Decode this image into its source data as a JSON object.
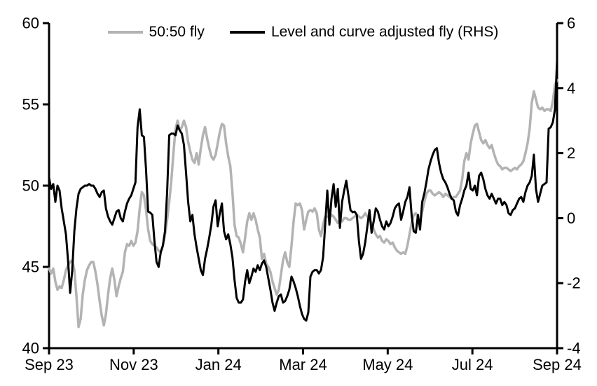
{
  "chart_data": {
    "type": "line",
    "title": "",
    "background": "#ffffff",
    "axis_color": "#000000",
    "grid": false,
    "legend_position": "top-center",
    "x_axis": {
      "tick_labels": [
        "Sep 23",
        "Nov 23",
        "Jan 24",
        "Mar 24",
        "May 24",
        "Jul 24",
        "Sep 24"
      ]
    },
    "left_axis": {
      "range": [
        40,
        60
      ],
      "ticks": [
        60,
        55,
        50,
        45,
        40
      ]
    },
    "right_axis": {
      "range": [
        -4,
        6
      ],
      "ticks": [
        6,
        4,
        2,
        0,
        -2,
        -4
      ]
    },
    "series": [
      {
        "name": "50:50 fly",
        "axis": "left",
        "color": "#b3b3b3",
        "line_width": 3.5,
        "values": [
          44.9,
          44.6,
          44.9,
          44.1,
          43.6,
          43.8,
          43.7,
          44.2,
          44.8,
          45.1,
          45.3,
          45.4,
          44.8,
          43.2,
          41.3,
          41.8,
          43.3,
          44.2,
          44.8,
          45.1,
          45.3,
          45.3,
          44.7,
          43.9,
          42.9,
          42.0,
          41.4,
          42.1,
          43.3,
          44.3,
          44.9,
          44.2,
          43.2,
          43.8,
          44.3,
          44.7,
          45.9,
          46.4,
          46.3,
          46.6,
          46.3,
          46.5,
          47.2,
          48.6,
          49.6,
          49.4,
          48.5,
          47.3,
          46.6,
          46.4,
          46.3,
          46.2,
          46.0,
          45.9,
          46.3,
          47.0,
          47.9,
          49.0,
          50.3,
          52.0,
          53.5,
          54.0,
          53.4,
          53.6,
          54.0,
          53.6,
          52.7,
          52.1,
          51.6,
          51.4,
          52.0,
          51.3,
          52.3,
          53.1,
          53.6,
          52.9,
          52.3,
          51.8,
          51.6,
          51.9,
          52.6,
          53.3,
          53.8,
          53.7,
          52.6,
          51.8,
          51.2,
          49.6,
          47.6,
          46.9,
          46.8,
          46.4,
          45.9,
          46.8,
          47.8,
          48.3,
          47.9,
          48.3,
          47.9,
          47.3,
          46.8,
          45.5,
          45.8,
          45.2,
          45.0,
          44.7,
          44.1,
          43.7,
          43.3,
          43.6,
          44.5,
          45.4,
          45.9,
          45.3,
          45.0,
          46.3,
          47.8,
          48.9,
          48.8,
          48.9,
          48.5,
          47.3,
          47.9,
          48.4,
          48.5,
          48.4,
          48.6,
          48.3,
          47.3,
          46.9,
          47.6,
          48.1,
          48.1,
          48.0,
          48.2,
          48.1,
          47.9,
          47.7,
          47.9,
          47.8,
          48.0,
          48.0,
          47.9,
          47.9,
          48.0,
          48.1,
          48.2,
          48.1,
          48.0,
          48.1,
          48.3,
          48.1,
          47.9,
          47.7,
          47.3,
          47.0,
          46.8,
          46.9,
          46.6,
          46.5,
          46.7,
          46.6,
          46.4,
          46.5,
          46.2,
          46.0,
          45.9,
          45.8,
          45.9,
          45.8,
          46.3,
          47.0,
          47.7,
          48.2,
          48.3,
          48.0,
          47.7,
          48.4,
          49.0,
          49.5,
          49.7,
          49.7,
          49.5,
          49.4,
          49.5,
          49.6,
          49.5,
          49.3,
          49.5,
          49.4,
          49.3,
          49.2,
          49.3,
          49.3,
          49.5,
          49.7,
          50.4,
          51.5,
          52.0,
          51.6,
          52.6,
          53.2,
          53.7,
          53.8,
          53.3,
          52.8,
          52.6,
          52.8,
          52.5,
          52.3,
          52.5,
          52.0,
          51.6,
          51.3,
          51.2,
          51.0,
          51.1,
          51.1,
          51.0,
          50.9,
          51.0,
          51.1,
          51.0,
          51.2,
          51.3,
          51.5,
          52.0,
          52.6,
          53.5,
          55.1,
          55.8,
          55.3,
          54.8,
          54.7,
          54.8,
          54.6,
          54.7,
          54.7,
          54.6,
          55.2,
          56.2,
          56.5
        ]
      },
      {
        "name": "Level and curve adjusted fly (RHS)",
        "axis": "right",
        "color": "#000000",
        "line_width": 3,
        "values": [
          1.25,
          0.9,
          1.05,
          0.5,
          1.0,
          0.85,
          0.3,
          -0.1,
          -0.5,
          -1.3,
          -2.3,
          -1.6,
          -0.4,
          0.3,
          0.75,
          0.9,
          0.95,
          1.0,
          1.0,
          1.05,
          1.0,
          1.0,
          0.9,
          0.75,
          0.65,
          0.8,
          0.85,
          0.3,
          0.05,
          -0.1,
          -0.2,
          0.0,
          0.2,
          0.25,
          0.0,
          -0.1,
          0.2,
          0.45,
          0.6,
          0.7,
          0.9,
          1.1,
          2.8,
          3.35,
          2.55,
          2.5,
          1.5,
          0.2,
          0.17,
          0.1,
          -0.7,
          -1.35,
          -1.5,
          -1.05,
          -0.85,
          -0.4,
          0.8,
          2.55,
          2.6,
          2.6,
          2.55,
          2.85,
          2.7,
          2.6,
          2.25,
          1.4,
          0.5,
          -0.1,
          0.1,
          -0.5,
          -0.9,
          -1.25,
          -1.6,
          -1.75,
          -1.25,
          -0.95,
          -0.6,
          -0.2,
          0.35,
          0.55,
          -0.25,
          0.15,
          0.45,
          -0.4,
          -0.65,
          -0.5,
          -0.8,
          -1.2,
          -1.9,
          -2.45,
          -2.6,
          -2.6,
          -2.5,
          -1.95,
          -1.6,
          -2.0,
          -1.8,
          -1.55,
          -1.65,
          -1.45,
          -1.6,
          -1.4,
          -1.3,
          -1.5,
          -1.85,
          -2.2,
          -2.6,
          -2.85,
          -2.6,
          -2.4,
          -2.35,
          -2.6,
          -2.55,
          -2.4,
          -2.2,
          -1.8,
          -1.95,
          -2.15,
          -2.4,
          -2.7,
          -2.95,
          -3.1,
          -3.15,
          -2.9,
          -1.8,
          -1.65,
          -1.6,
          -1.6,
          -1.7,
          -1.6,
          -1.2,
          -0.2,
          0.85,
          -0.2,
          0.6,
          1.05,
          0.35,
          0.9,
          -0.3,
          0.5,
          0.85,
          1.15,
          0.7,
          0.25,
          0.18,
          0.2,
          0.1,
          -0.7,
          -1.25,
          -1.1,
          -0.75,
          -0.25,
          0.25,
          -0.45,
          -0.1,
          0.3,
          0.2,
          -0.05,
          -0.25,
          -0.35,
          -0.1,
          -0.25,
          -0.15,
          0.05,
          0.3,
          0.4,
          0.45,
          -0.05,
          0.2,
          0.5,
          0.65,
          0.95,
          0.1,
          -0.4,
          -0.45,
          0.1,
          -0.35,
          0.5,
          0.75,
          1.1,
          1.5,
          1.75,
          1.95,
          2.1,
          2.15,
          1.7,
          1.4,
          1.2,
          1.1,
          0.95,
          0.75,
          0.6,
          0.55,
          0.2,
          0.08,
          0.4,
          0.6,
          0.85,
          1.0,
          1.4,
          0.9,
          0.85,
          1.0,
          0.7,
          1.3,
          1.4,
          1.2,
          0.9,
          0.7,
          0.6,
          0.75,
          0.6,
          0.45,
          0.6,
          0.6,
          0.4,
          0.5,
          0.4,
          0.15,
          0.1,
          0.25,
          0.3,
          0.45,
          0.6,
          0.65,
          0.5,
          0.8,
          1.0,
          1.1,
          1.3,
          1.95,
          0.9,
          0.5,
          0.75,
          1.0,
          1.05,
          1.1,
          2.75,
          2.8,
          2.95,
          3.35,
          4.85
        ]
      }
    ]
  }
}
